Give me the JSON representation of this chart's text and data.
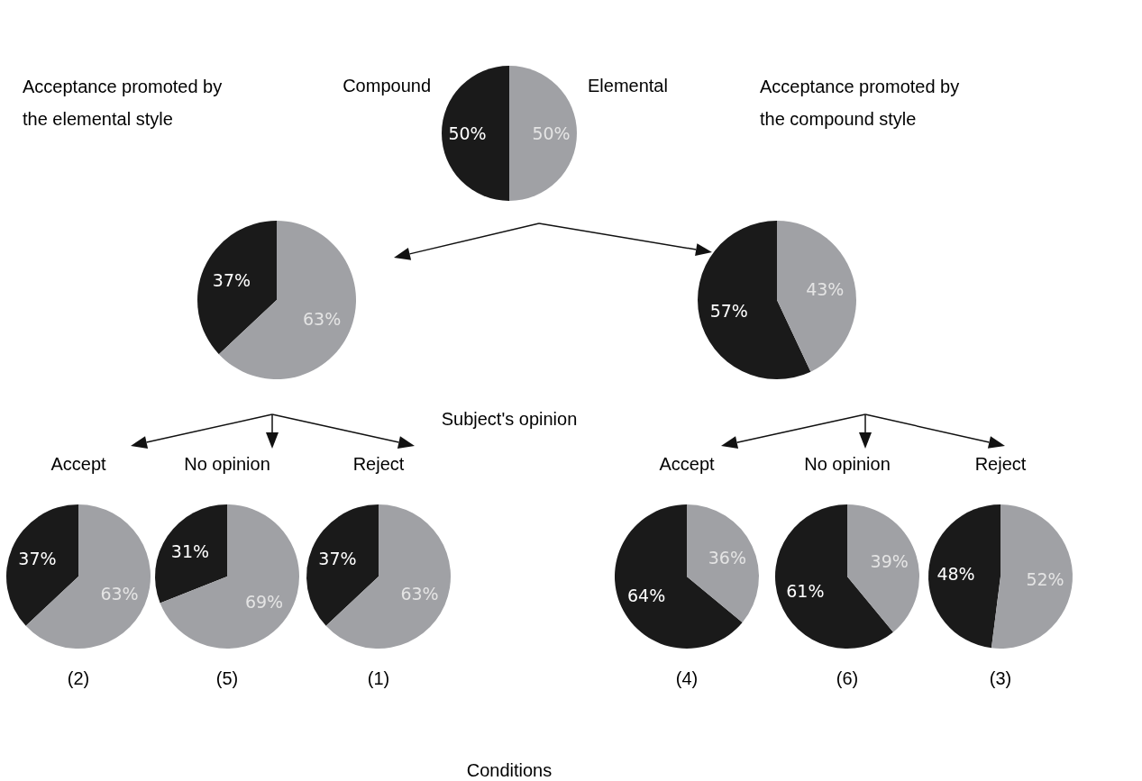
{
  "chart_data": [
    {
      "type": "pie",
      "categories": [
        "Compound",
        "Elemental"
      ],
      "values": [
        50,
        50
      ],
      "colors": [
        "#1a1a1a",
        "#a0a1a5"
      ],
      "value_labels": [
        "50%",
        "50%"
      ],
      "annotations": [
        "Subject's opinion",
        "Conditions"
      ]
    },
    {
      "type": "pie",
      "title": "Acceptance promoted by the elemental style",
      "categories": [
        null,
        null
      ],
      "values": [
        37,
        63
      ],
      "colors": [
        "#1a1a1a",
        "#a0a1a5"
      ],
      "value_labels": [
        "37%",
        "63%"
      ]
    },
    {
      "type": "pie",
      "title": "Acceptance promoted by the compound style",
      "categories": [
        null,
        null
      ],
      "values": [
        57,
        43
      ],
      "colors": [
        "#1a1a1a",
        "#a0a1a5"
      ],
      "value_labels": [
        "57%",
        "43%"
      ]
    },
    {
      "type": "pie",
      "title": "Accept",
      "categories": [
        null,
        null
      ],
      "values": [
        37,
        63
      ],
      "colors": [
        "#1a1a1a",
        "#a0a1a5"
      ],
      "value_labels": [
        "37%",
        "63%"
      ],
      "annotations": [
        "(2)"
      ]
    },
    {
      "type": "pie",
      "title": "No opinion",
      "categories": [
        null,
        null
      ],
      "values": [
        31,
        69
      ],
      "colors": [
        "#1a1a1a",
        "#a0a1a5"
      ],
      "value_labels": [
        "31%",
        "69%"
      ],
      "annotations": [
        "(5)"
      ]
    },
    {
      "type": "pie",
      "title": "Reject",
      "categories": [
        null,
        null
      ],
      "values": [
        37,
        63
      ],
      "colors": [
        "#1a1a1a",
        "#a0a1a5"
      ],
      "value_labels": [
        "37%",
        "63%"
      ],
      "annotations": [
        "(1)"
      ]
    },
    {
      "type": "pie",
      "title": "Accept",
      "categories": [
        null,
        null
      ],
      "values": [
        64,
        36
      ],
      "colors": [
        "#1a1a1a",
        "#a0a1a5"
      ],
      "value_labels": [
        "64%",
        "36%"
      ],
      "annotations": [
        "(4)"
      ]
    },
    {
      "type": "pie",
      "title": "No opinion",
      "categories": [
        null,
        null
      ],
      "values": [
        61,
        39
      ],
      "colors": [
        "#1a1a1a",
        "#a0a1a5"
      ],
      "value_labels": [
        "61%",
        "39%"
      ],
      "annotations": [
        "(6)"
      ]
    },
    {
      "type": "pie",
      "title": "Reject",
      "categories": [
        null,
        null
      ],
      "values": [
        48,
        52
      ],
      "colors": [
        "#1a1a1a",
        "#a0a1a5"
      ],
      "value_labels": [
        "48%",
        "52%"
      ],
      "annotations": [
        "(3)"
      ]
    }
  ]
}
